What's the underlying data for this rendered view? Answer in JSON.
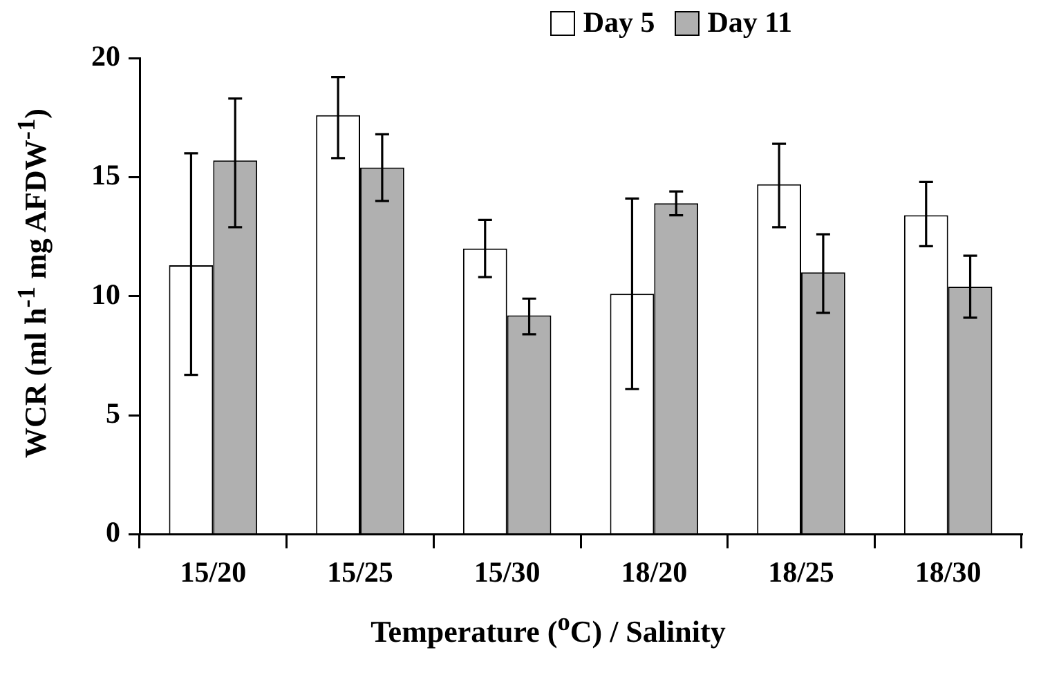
{
  "chart_data": {
    "type": "bar",
    "xlabel": "Temperature ($^{o}$C) / Salinity",
    "ylabel": "WCR (ml h$^{-1}$ mg AFDW$^{-1}$)",
    "categories": [
      "15/20",
      "15/25",
      "15/30",
      "18/20",
      "18/25",
      "18/30"
    ],
    "series": [
      {
        "name": "Day 5",
        "color": "#ffffff",
        "values": [
          11.3,
          17.6,
          12.0,
          10.1,
          14.7,
          13.4
        ],
        "errors": [
          [
            6.7,
            16.0
          ],
          [
            15.8,
            19.2
          ],
          [
            10.8,
            13.2
          ],
          [
            6.1,
            14.1
          ],
          [
            12.9,
            16.4
          ],
          [
            12.1,
            14.8
          ]
        ]
      },
      {
        "name": "Day 11",
        "color": "#b0b0b0",
        "values": [
          15.7,
          15.4,
          9.2,
          13.9,
          11.0,
          10.4
        ],
        "errors": [
          [
            12.9,
            18.3
          ],
          [
            14.0,
            16.8
          ],
          [
            8.4,
            9.9
          ],
          [
            13.4,
            14.4
          ],
          [
            9.3,
            12.6
          ],
          [
            9.1,
            11.7
          ]
        ]
      }
    ],
    "ylim": [
      0,
      20
    ],
    "yticks": [
      0,
      5,
      10,
      15,
      20
    ],
    "grid": false,
    "legend": "top right"
  }
}
